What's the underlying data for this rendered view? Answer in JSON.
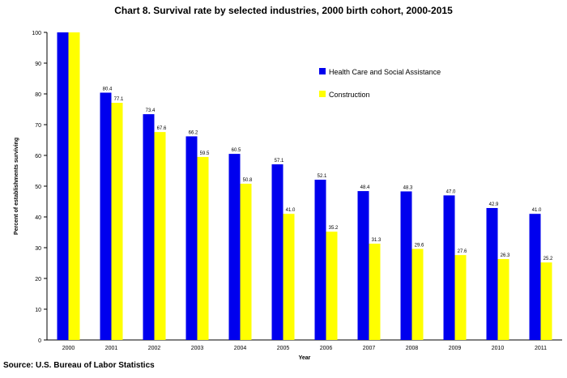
{
  "chart_data": {
    "type": "bar",
    "title": "Chart 8. Survival rate by selected industries, 2000 birth cohort, 2000-2015",
    "xlabel": "Year",
    "ylabel": "Percent of establishments surviving",
    "ylim": [
      0,
      100
    ],
    "yticks": [
      0,
      10,
      20,
      30,
      40,
      50,
      60,
      70,
      80,
      90,
      100
    ],
    "categories": [
      "2000",
      "2001",
      "2002",
      "2003",
      "2004",
      "2005",
      "2006",
      "2007",
      "2008",
      "2009",
      "2010",
      "2011"
    ],
    "series": [
      {
        "name": "Health Care and Social Assistance",
        "color": "#0000ee",
        "values": [
          100,
          80.4,
          73.4,
          66.2,
          60.5,
          57.1,
          52.1,
          48.4,
          48.3,
          47.0,
          42.9,
          41.0
        ]
      },
      {
        "name": "Construction",
        "color": "#ffff00",
        "values": [
          100,
          77.1,
          67.6,
          59.5,
          50.8,
          41.0,
          35.2,
          31.3,
          29.6,
          27.6,
          26.3,
          25.2
        ]
      }
    ],
    "value_labels": [
      [
        "",
        "80.4",
        "73.4",
        "66.2",
        "60.5",
        "57.1",
        "52.1",
        "48.4",
        "48.3",
        "47.0",
        "42.9",
        "41.0"
      ],
      [
        "",
        "77.1",
        "67.6",
        "59.5",
        "50.8",
        "41.0",
        "35.2",
        "31.3",
        "29.6",
        "27.6",
        "26.3",
        "25.2"
      ]
    ],
    "legend_position": "top-right",
    "grid": false
  },
  "source": "Source: U.S. Bureau of Labor Statistics"
}
